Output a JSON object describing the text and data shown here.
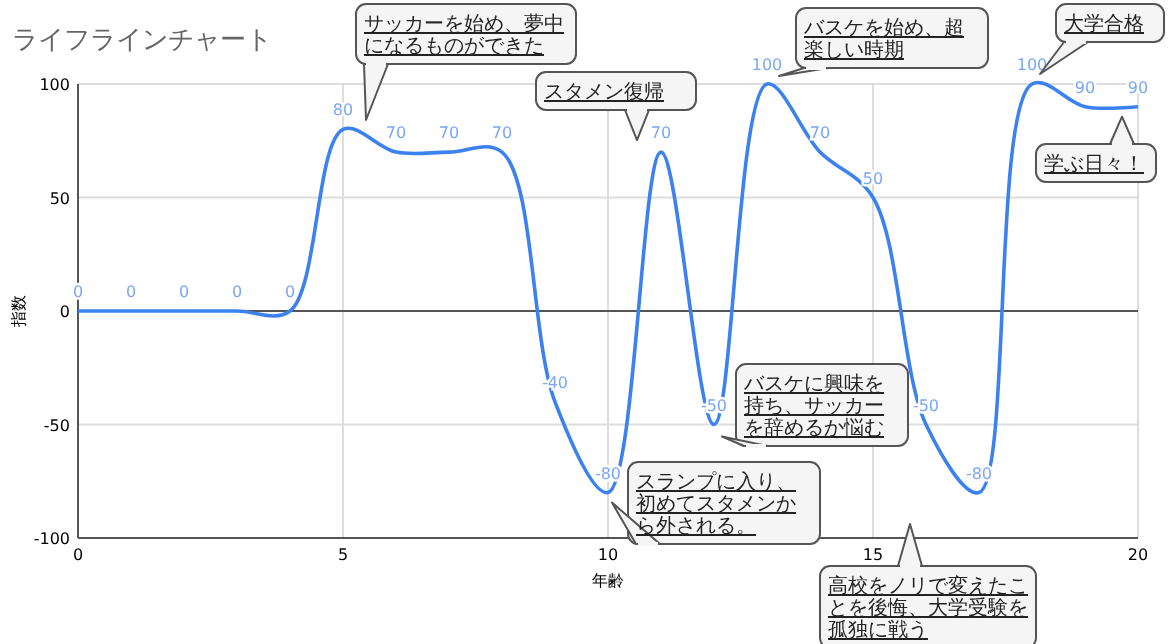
{
  "chart_data": {
    "type": "line",
    "title": "ライフラインチャート",
    "xlabel": "年齢",
    "ylabel": "指数",
    "x": [
      0,
      1,
      2,
      3,
      4,
      5,
      6,
      7,
      8,
      9,
      10,
      11,
      12,
      13,
      14,
      15,
      16,
      17,
      18,
      19,
      20
    ],
    "series": [
      {
        "color": "#3b82f0",
        "values": [
          0,
          0,
          0,
          0,
          0,
          80,
          70,
          70,
          70,
          -40,
          -80,
          70,
          -50,
          100,
          70,
          50,
          -50,
          -80,
          100,
          90,
          90
        ]
      }
    ],
    "xlim": [
      0,
      20
    ],
    "xticks": [
      0,
      5,
      10,
      15,
      20
    ],
    "ylim": [
      -100,
      100
    ],
    "yticks": [
      -100,
      -50,
      0,
      50,
      100
    ],
    "grid": true,
    "marker": "none",
    "line_style": "solid",
    "data_labels": true,
    "annotations": [
      "サッカーを始め、夢中になるものができた",
      {
        "text": "スタメン復帰",
        "x": 11,
        "y": 70
      },
      {
        "text": "バスケを始め、超楽しい時期",
        "x": 13,
        "y": 100
      },
      {
        "text": "大学合格",
        "x": 18,
        "y": 100
      },
      {
        "text": "学ぶ日々！",
        "x": 20,
        "y": 90
      },
      {
        "text": "バスケに興味を持ち、サッカーを辞めるか悩む",
        "x": 12,
        "y": -50
      },
      {
        "text": "スランプに入り、初めてスタメンから外される。",
        "x": 10,
        "y": -80
      },
      "高校をノリで変えたことを後悔、大学受験を孤独に戦う"
    ]
  }
}
